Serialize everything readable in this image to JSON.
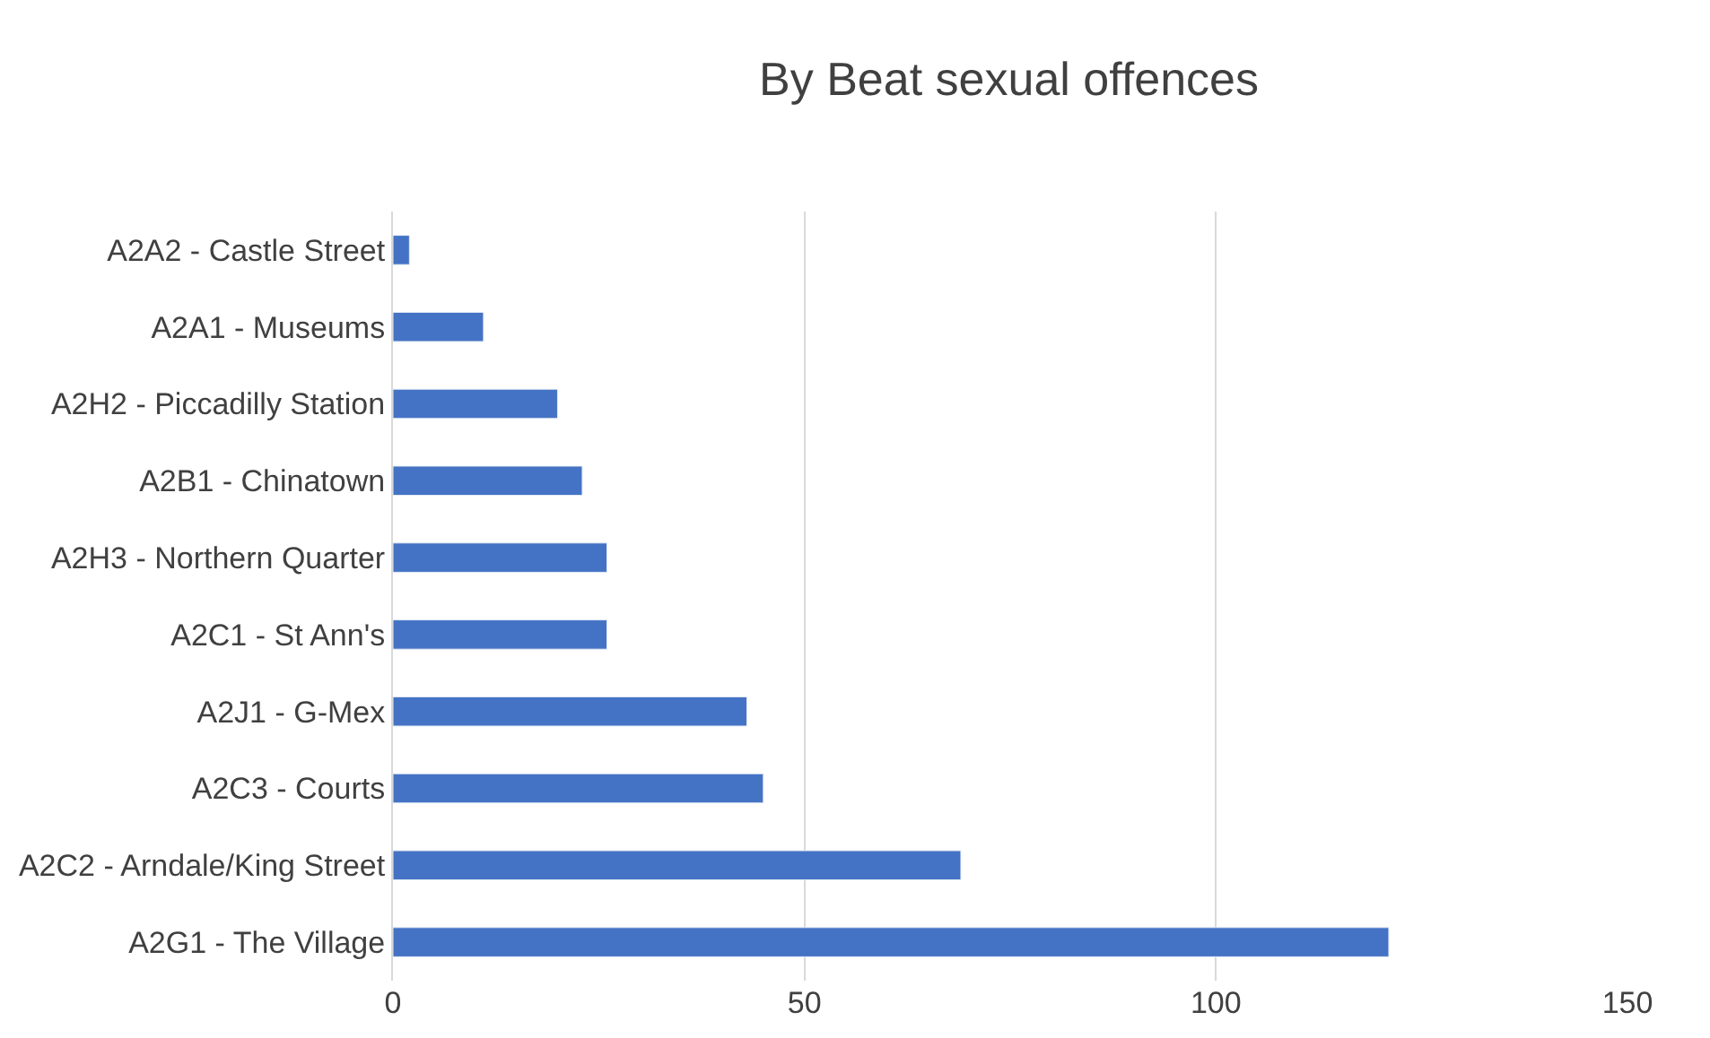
{
  "chart_data": {
    "type": "bar",
    "orientation": "horizontal",
    "title": "By Beat sexual offences",
    "categories": [
      "A2A2 - Castle Street",
      "A2A1 - Museums",
      "A2H2 - Piccadilly Station",
      "A2B1 - Chinatown",
      "A2H3 - Northern Quarter",
      "A2C1 - St Ann's",
      "A2J1 - G-Mex",
      "A2C3 - Courts",
      "A2C2 - Arndale/King Street",
      "A2G1 - The Village"
    ],
    "values": [
      2,
      11,
      20,
      23,
      26,
      26,
      43,
      45,
      69,
      121
    ],
    "color": "#4472c4",
    "xlim": [
      0,
      150
    ],
    "xticks": [
      0,
      50,
      100,
      150
    ],
    "grid": "x"
  }
}
